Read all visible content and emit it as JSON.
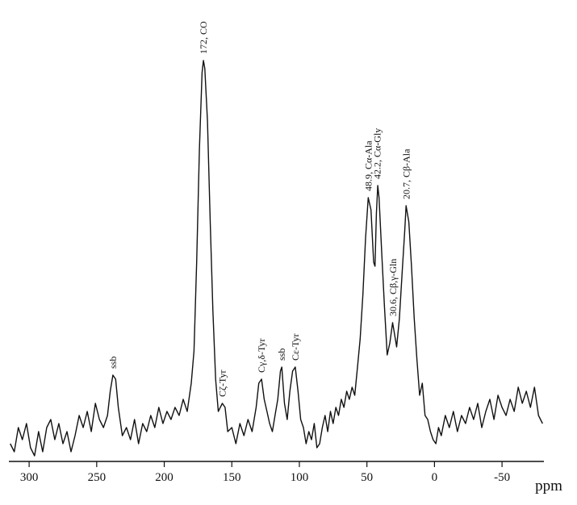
{
  "chart_data": {
    "type": "line",
    "xlabel": "ppm",
    "color": "#111111",
    "xlim": [
      315,
      -81
    ],
    "xticks": [
      300,
      250,
      200,
      150,
      100,
      50,
      0,
      -50
    ],
    "ylim": [
      0,
      100
    ],
    "x": [
      314,
      311,
      308,
      305,
      302,
      299,
      296,
      293,
      290,
      287,
      284,
      281,
      278,
      275,
      272,
      269,
      266,
      263,
      260,
      257,
      254,
      251,
      248,
      245,
      242,
      240,
      238,
      236,
      234,
      231,
      228,
      225,
      222,
      219,
      216,
      213,
      210,
      207,
      204,
      201,
      198,
      195,
      192,
      189,
      186,
      183,
      180,
      178,
      176,
      174,
      172,
      171,
      170,
      168,
      166,
      164,
      162,
      160,
      157,
      155,
      153,
      150,
      147,
      144,
      141,
      138,
      135,
      132,
      130,
      128,
      126,
      124,
      122,
      120,
      118,
      116,
      114,
      113,
      111,
      109,
      107,
      105,
      103,
      101,
      99,
      97,
      95,
      93,
      91,
      89,
      87,
      85,
      83,
      81,
      79,
      77,
      75,
      73,
      71,
      69,
      67,
      65,
      63,
      61,
      59,
      57,
      55,
      53,
      51,
      49,
      47,
      45,
      44,
      43,
      42,
      41,
      39,
      37,
      35,
      33,
      31,
      30,
      28,
      26,
      24,
      22,
      21,
      19,
      17,
      15,
      13,
      11,
      9,
      7,
      5,
      3,
      1,
      -1,
      -3,
      -5,
      -8,
      -11,
      -14,
      -17,
      -20,
      -23,
      -26,
      -29,
      -32,
      -35,
      -38,
      -41,
      -44,
      -47,
      -50,
      -53,
      -56,
      -59,
      -62,
      -65,
      -68,
      -71,
      -74,
      -77,
      -80
    ],
    "values": [
      5,
      3,
      9,
      6,
      10,
      4,
      2,
      8,
      3,
      9,
      11,
      6,
      10,
      5,
      8,
      3,
      7,
      12,
      9,
      13,
      8,
      15,
      11,
      9,
      12,
      18,
      22,
      21,
      14,
      7,
      9,
      6,
      11,
      5,
      10,
      8,
      12,
      9,
      14,
      10,
      13,
      11,
      14,
      12,
      16,
      13,
      20,
      28,
      50,
      78,
      97,
      100,
      98,
      85,
      60,
      38,
      21,
      13,
      15,
      14,
      8,
      9,
      5,
      10,
      7,
      11,
      8,
      14,
      20,
      21,
      16,
      13,
      10,
      8,
      12,
      16,
      23,
      24,
      15,
      11,
      18,
      23,
      24,
      18,
      11,
      9,
      5,
      8,
      6,
      10,
      4,
      5,
      9,
      12,
      8,
      13,
      10,
      14,
      12,
      16,
      14,
      18,
      16,
      19,
      17,
      24,
      31,
      42,
      56,
      66,
      63,
      50,
      49,
      62,
      69,
      66,
      52,
      39,
      27,
      30,
      35,
      33,
      29,
      36,
      47,
      58,
      64,
      60,
      49,
      36,
      26,
      17,
      20,
      12,
      11,
      8,
      6,
      5,
      9,
      7,
      12,
      9,
      13,
      8,
      12,
      10,
      14,
      11,
      15,
      9,
      13,
      16,
      11,
      17,
      14,
      12,
      16,
      13,
      19,
      15,
      18,
      14,
      19,
      12,
      10
    ],
    "annotations": [
      {
        "text": "ssb",
        "x": 238
      },
      {
        "text": "172, CO",
        "x": 171
      },
      {
        "text": "Cζ-Tyr",
        "x": 157
      },
      {
        "text": "Cγ,δ-Tyr",
        "x": 128
      },
      {
        "text": "ssb",
        "x": 113
      },
      {
        "text": "Cε-Tyr",
        "x": 103
      },
      {
        "text": "48.9, Cα-Ala",
        "x": 48.9
      },
      {
        "text": "42.2, Cα-Gly",
        "x": 42.2
      },
      {
        "text": "30.6, Cβ,γ-Gln",
        "x": 30.6
      },
      {
        "text": "20.7, Cβ-Ala",
        "x": 20.7
      }
    ]
  }
}
